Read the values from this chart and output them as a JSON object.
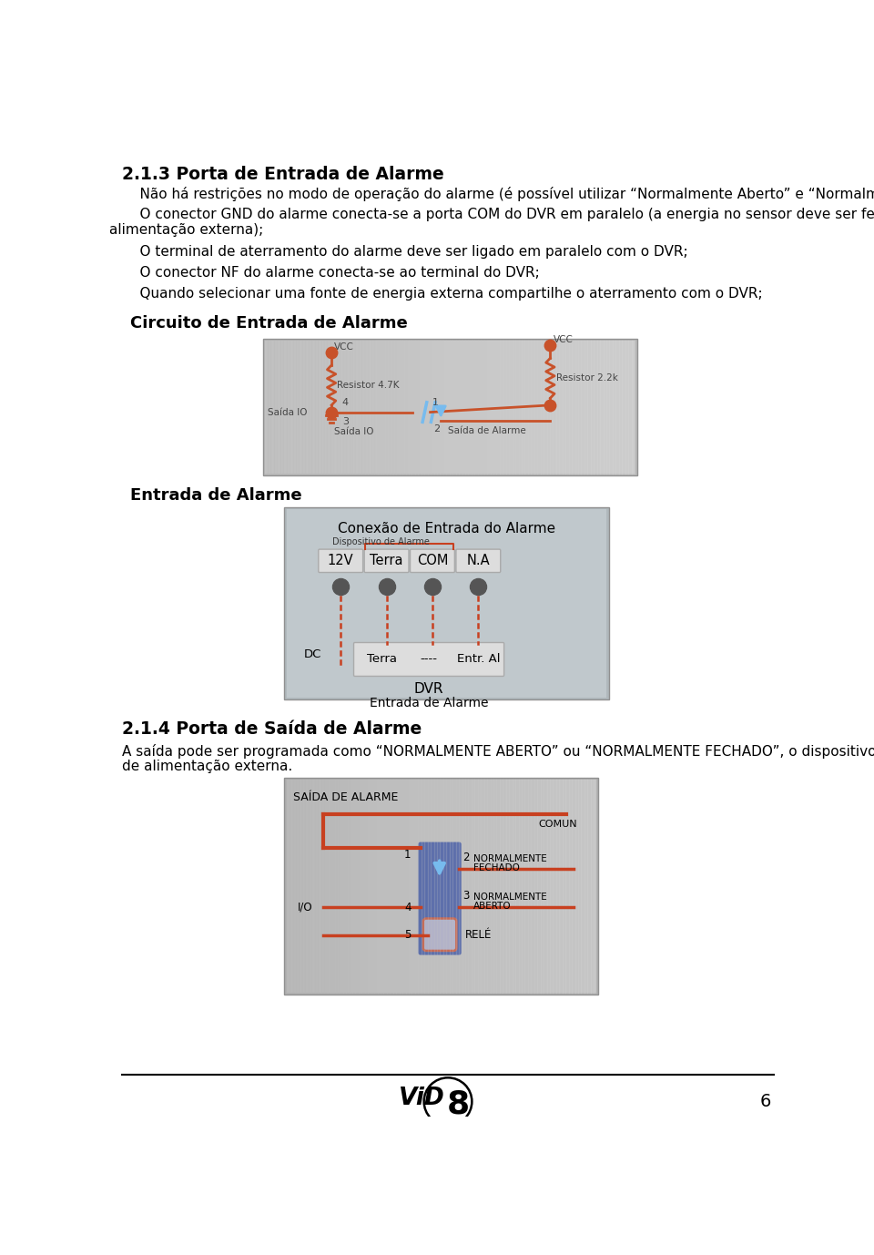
{
  "bg_color": "#ffffff",
  "title_section": "2.1.3 Porta de Entrada de Alarme",
  "line1": "    Não há restrições no modo de operação do alarme (é possível utilizar “Normalmente Aberto” e “Normalmente Fechado”);",
  "line2a": "    O conector GND do alarme conecta-se a porta COM do DVR em paralelo (a energia no sensor deve ser feita por uma fonte de",
  "line2b": "alimentação externa);",
  "line3": "    O terminal de aterramento do alarme deve ser ligado em paralelo com o DVR;",
  "line4": "    O conector NF do alarme conecta-se ao terminal do DVR;",
  "line5": "    Quando selecionar uma fonte de energia externa compartilhe o aterramento com o DVR;",
  "diagram1_title": "Circuito de Entrada de Alarme",
  "diagram2_title": "Entrada de Alarme",
  "section2_title": "2.1.4 Porta de Saída de Alarme",
  "section2_line1": "A saída pode ser programada como “NORMALMENTE ABERTO” ou “NORMALMENTE FECHADO”, o dispositivo acoplado necessita",
  "section2_line2": "de alimentação externa.",
  "footer_page": "6",
  "red": "#c8522a",
  "blue_relay": "#2a45a0",
  "light_blue": "#77bbee",
  "wire_red": "#c84020",
  "gray_box": "#b8b8b8",
  "gray_inner": "#c8c8c8",
  "gray_box2": "#b0b8bc",
  "gray_inner2": "#c0c8cc"
}
